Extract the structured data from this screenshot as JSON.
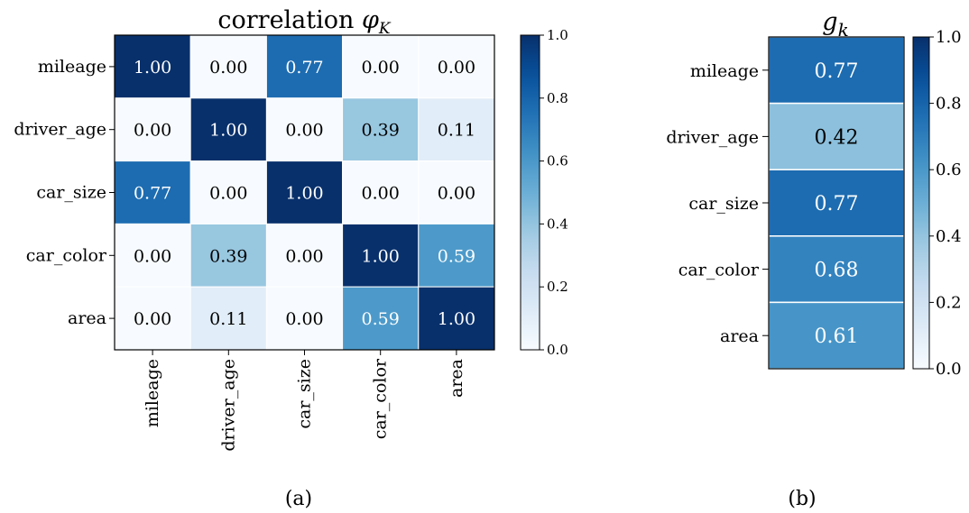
{
  "chart_data": [
    {
      "type": "heatmap",
      "title_prefix": "correlation ",
      "title_symbol": "φ",
      "title_subscript": "K",
      "rows": [
        "mileage",
        "driver_age",
        "car_size",
        "car_color",
        "area"
      ],
      "columns": [
        "mileage",
        "driver_age",
        "car_size",
        "car_color",
        "area"
      ],
      "values": [
        [
          1.0,
          0.0,
          0.77,
          0.0,
          0.0
        ],
        [
          0.0,
          1.0,
          0.0,
          0.39,
          0.11
        ],
        [
          0.77,
          0.0,
          1.0,
          0.0,
          0.0
        ],
        [
          0.0,
          0.39,
          0.0,
          1.0,
          0.59
        ],
        [
          0.0,
          0.11,
          0.0,
          0.59,
          1.0
        ]
      ],
      "value_labels": [
        [
          "1.00",
          "0.00",
          "0.77",
          "0.00",
          "0.00"
        ],
        [
          "0.00",
          "1.00",
          "0.00",
          "0.39",
          "0.11"
        ],
        [
          "0.77",
          "0.00",
          "1.00",
          "0.00",
          "0.00"
        ],
        [
          "0.00",
          "0.39",
          "0.00",
          "1.00",
          "0.59"
        ],
        [
          "0.00",
          "0.11",
          "0.00",
          "0.59",
          "1.00"
        ]
      ],
      "colormap": "Blues",
      "vmin": 0.0,
      "vmax": 1.0,
      "colorbar_ticks": [
        "0.0",
        "0.2",
        "0.4",
        "0.6",
        "0.8",
        "1.0"
      ],
      "caption": "(a)"
    },
    {
      "type": "heatmap",
      "title_symbol": "g",
      "title_subscript": "k",
      "rows": [
        "mileage",
        "driver_age",
        "car_size",
        "car_color",
        "area"
      ],
      "values": [
        0.77,
        0.42,
        0.77,
        0.68,
        0.61
      ],
      "value_labels": [
        "0.77",
        "0.42",
        "0.77",
        "0.68",
        "0.61"
      ],
      "colormap": "Blues",
      "vmin": 0.0,
      "vmax": 1.0,
      "colorbar_ticks": [
        "0.0",
        "0.2",
        "0.4",
        "0.6",
        "0.8",
        "1.0"
      ],
      "caption": "(b)"
    }
  ],
  "colors": {
    "blues_low": "#f7fbff",
    "blues_high": "#08306b",
    "text_dark": "#000000",
    "text_light": "#ffffff"
  }
}
